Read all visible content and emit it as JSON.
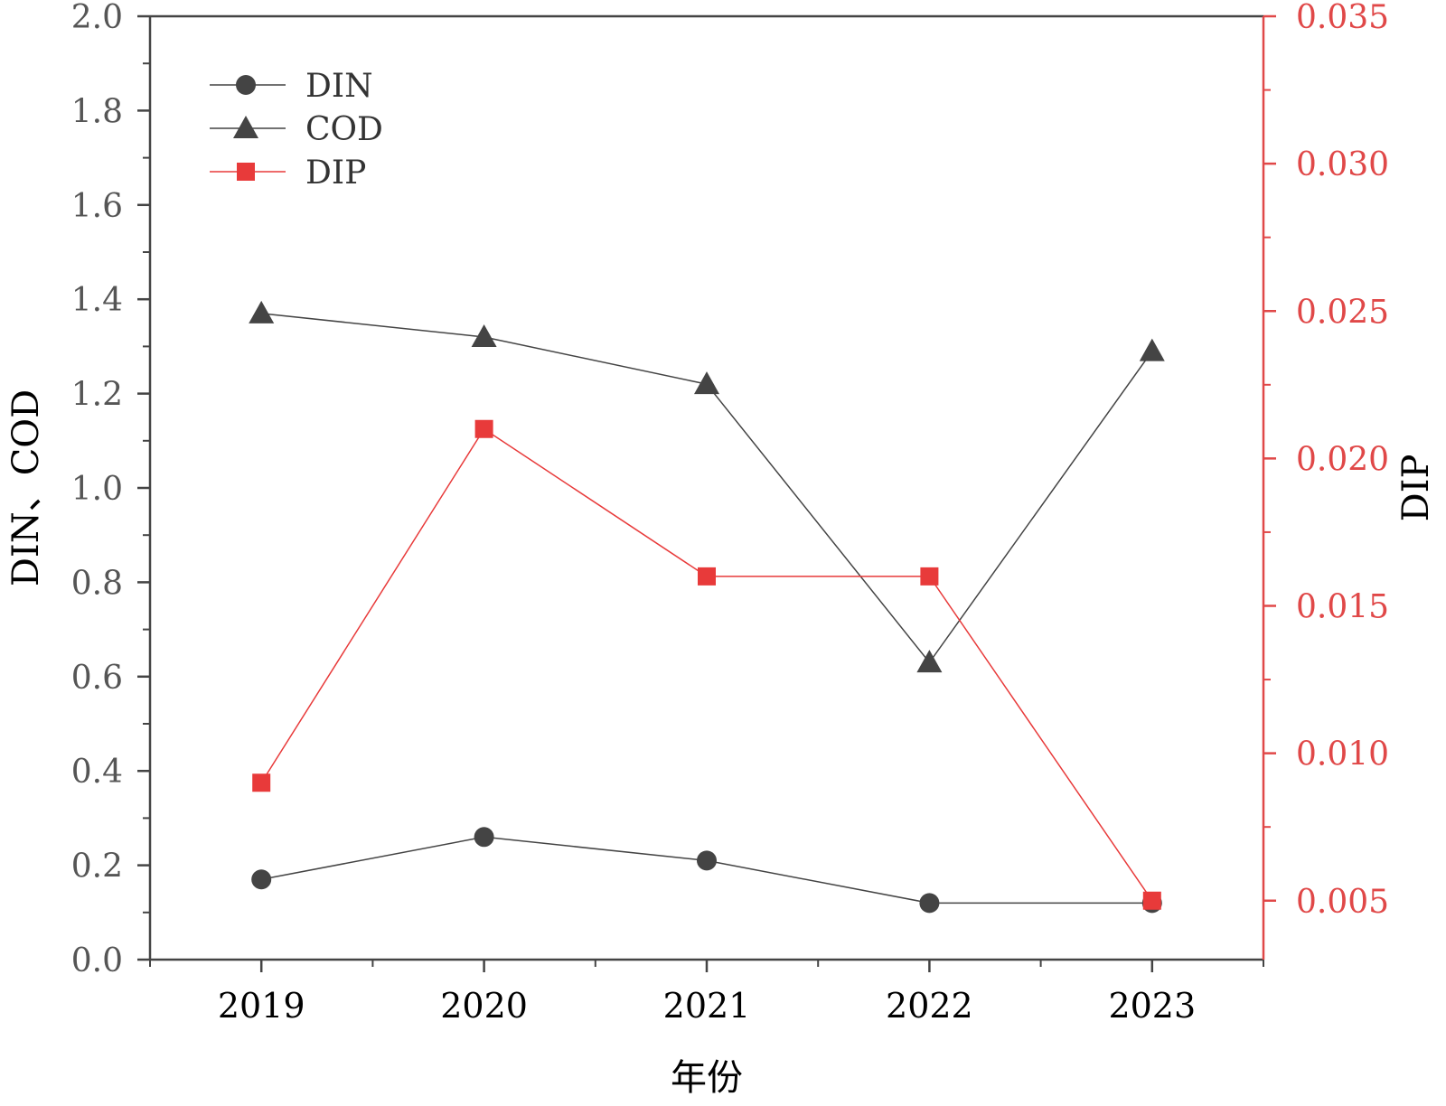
{
  "chart_data": {
    "type": "line",
    "title": "",
    "xlabel": "年份",
    "ylabel_left": "DIN、COD",
    "ylabel_right": "DIP",
    "categories": [
      "2019",
      "2020",
      "2021",
      "2022",
      "2023"
    ],
    "ylim_left": [
      0,
      2.0
    ],
    "ylim_right": [
      0.003,
      0.035
    ],
    "yticks_left": [
      "0.0",
      "0.2",
      "0.4",
      "0.6",
      "0.8",
      "1.0",
      "1.2",
      "1.4",
      "1.6",
      "1.8",
      "2.0"
    ],
    "yticks_right": [
      "0.005",
      "0.010",
      "0.015",
      "0.020",
      "0.025",
      "0.030",
      "0.035"
    ],
    "grid": false,
    "legend_position": "top-left",
    "series": [
      {
        "name": "DIN",
        "axis": "left",
        "marker": "circle",
        "color": "#444444",
        "values": [
          0.17,
          0.26,
          0.21,
          0.12,
          0.12
        ]
      },
      {
        "name": "COD",
        "axis": "left",
        "marker": "triangle",
        "color": "#444444",
        "values": [
          1.37,
          1.32,
          1.22,
          0.63,
          1.29
        ]
      },
      {
        "name": "DIP",
        "axis": "right",
        "marker": "square",
        "color": "#e83a3a",
        "values": [
          0.009,
          0.021,
          0.016,
          0.016,
          0.005
        ]
      }
    ],
    "colors": {
      "left_axis": "#444444",
      "right_axis": "#e04848"
    }
  }
}
